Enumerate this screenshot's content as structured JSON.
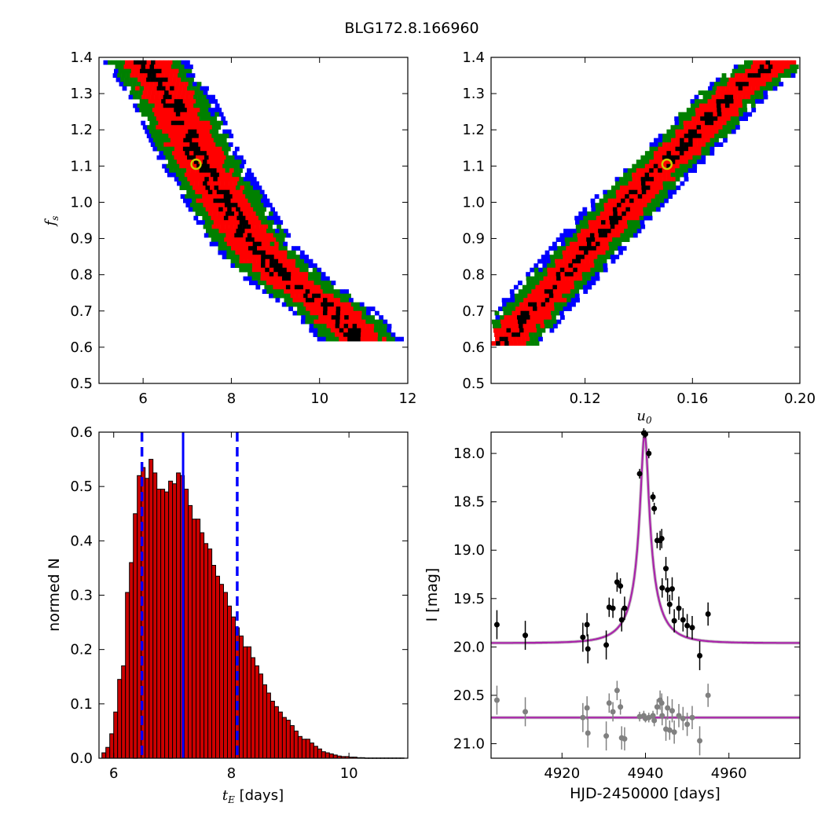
{
  "title": "BLG172.8.166960",
  "chart_data": [
    {
      "type": "heatmap",
      "panel": "top-left",
      "xlabel": "",
      "ylabel": "f_s",
      "xlim": [
        5,
        12
      ],
      "ylim": [
        0.5,
        1.4
      ],
      "xticks": [
        "6",
        "8",
        "10",
        "12"
      ],
      "yticks": [
        "0.5",
        "0.6",
        "0.7",
        "0.8",
        "0.9",
        "1.0",
        "1.1",
        "1.2",
        "1.3",
        "1.4"
      ],
      "contour_levels": [
        {
          "level": "3-sigma",
          "color": "#0000ff"
        },
        {
          "level": "2-sigma",
          "color": "#008000"
        },
        {
          "level": "1-sigma",
          "color": "#ff0000"
        },
        {
          "level": "peak",
          "color": "#000000"
        }
      ],
      "ridge": [
        [
          6.0,
          1.38
        ],
        [
          6.6,
          1.28
        ],
        [
          7.2,
          1.12
        ],
        [
          7.8,
          1.0
        ],
        [
          8.4,
          0.88
        ],
        [
          9.2,
          0.78
        ],
        [
          10.2,
          0.7
        ],
        [
          10.9,
          0.61
        ]
      ],
      "best_fit": {
        "x": 7.2,
        "y": 1.105,
        "color": "#cccc00"
      }
    },
    {
      "type": "heatmap",
      "panel": "top-right",
      "xlabel": "u_0",
      "ylabel": "",
      "xlim": [
        0.085,
        0.2
      ],
      "ylim": [
        0.5,
        1.4
      ],
      "xticks": [
        "0.12",
        "0.16",
        "0.20"
      ],
      "yticks": [
        "0.5",
        "0.6",
        "0.7",
        "0.8",
        "0.9",
        "1.0",
        "1.1",
        "1.2",
        "1.3",
        "1.4"
      ],
      "ridge": [
        [
          0.089,
          0.6
        ],
        [
          0.1,
          0.7
        ],
        [
          0.115,
          0.82
        ],
        [
          0.13,
          0.95
        ],
        [
          0.145,
          1.07
        ],
        [
          0.16,
          1.18
        ],
        [
          0.175,
          1.3
        ],
        [
          0.19,
          1.38
        ]
      ],
      "best_fit": {
        "x": 0.1505,
        "y": 1.105,
        "color": "#cccc00"
      }
    },
    {
      "type": "bar",
      "panel": "bottom-left",
      "xlabel": "t_E [days]",
      "ylabel": "normed N",
      "xlim": [
        5.75,
        11
      ],
      "ylim": [
        0,
        0.6
      ],
      "xticks": [
        "6",
        "8",
        "10"
      ],
      "yticks": [
        "0.0",
        "0.1",
        "0.2",
        "0.3",
        "0.4",
        "0.5",
        "0.6"
      ],
      "bin_start": 5.8,
      "bin_width": 0.0667,
      "values": [
        0.01,
        0.02,
        0.045,
        0.085,
        0.145,
        0.17,
        0.305,
        0.36,
        0.45,
        0.52,
        0.535,
        0.515,
        0.55,
        0.525,
        0.495,
        0.495,
        0.49,
        0.51,
        0.505,
        0.525,
        0.52,
        0.495,
        0.465,
        0.44,
        0.44,
        0.415,
        0.395,
        0.385,
        0.355,
        0.335,
        0.32,
        0.305,
        0.28,
        0.26,
        0.24,
        0.225,
        0.205,
        0.205,
        0.185,
        0.17,
        0.155,
        0.135,
        0.12,
        0.105,
        0.095,
        0.085,
        0.075,
        0.07,
        0.06,
        0.05,
        0.04,
        0.035,
        0.035,
        0.028,
        0.022,
        0.017,
        0.012,
        0.01,
        0.008,
        0.006,
        0.004,
        0.003,
        0.003,
        0.002,
        0.002,
        0.001,
        0.001,
        0.0005,
        0.0005,
        0.0005,
        0.0005,
        0.0005,
        0.0005,
        0.0005,
        0.0005,
        0.0005,
        0.0005,
        0.0005
      ],
      "bar_color": "#cc0000",
      "median": 7.18,
      "interval": [
        6.48,
        8.1
      ],
      "line_color": "#0000ff"
    },
    {
      "type": "scatter",
      "panel": "bottom-right",
      "xlabel": "HJD-2450000 [days]",
      "ylabel": "I [mag]",
      "xlim": [
        4903,
        4977
      ],
      "ylim": [
        21.15,
        17.78
      ],
      "xticks": [
        "4920",
        "4940",
        "4960"
      ],
      "yticks": [
        "18.0",
        "18.5",
        "19.0",
        "19.5",
        "20.0",
        "20.5",
        "21.0"
      ],
      "model": {
        "baseline": 19.96,
        "peak_mag": 17.8,
        "t0": 4939.8,
        "tE": 7.2,
        "u0": 0.15,
        "color": "#aa22aa"
      },
      "residual_baseline": 20.73,
      "series": [
        {
          "name": "data",
          "color": "#000000",
          "points": [
            {
              "x": 4904.4,
              "y": 19.77,
              "e": 0.15
            },
            {
              "x": 4911.2,
              "y": 19.88,
              "e": 0.15
            },
            {
              "x": 4925.0,
              "y": 19.9,
              "e": 0.15
            },
            {
              "x": 4926.0,
              "y": 19.77,
              "e": 0.12
            },
            {
              "x": 4926.2,
              "y": 20.02,
              "e": 0.15
            },
            {
              "x": 4930.6,
              "y": 19.98,
              "e": 0.15
            },
            {
              "x": 4931.3,
              "y": 19.59,
              "e": 0.1
            },
            {
              "x": 4932.2,
              "y": 19.6,
              "e": 0.1
            },
            {
              "x": 4933.2,
              "y": 19.33,
              "e": 0.1
            },
            {
              "x": 4934.0,
              "y": 19.37,
              "e": 0.08
            },
            {
              "x": 4934.3,
              "y": 19.72,
              "e": 0.12
            },
            {
              "x": 4935.0,
              "y": 19.6,
              "e": 0.12
            },
            {
              "x": 4938.6,
              "y": 18.21,
              "e": 0.05
            },
            {
              "x": 4939.6,
              "y": 17.79,
              "e": 0.05
            },
            {
              "x": 4940.0,
              "y": 17.8,
              "e": 0.04
            },
            {
              "x": 4940.8,
              "y": 18.0,
              "e": 0.05
            },
            {
              "x": 4941.8,
              "y": 18.45,
              "e": 0.05
            },
            {
              "x": 4942.1,
              "y": 18.57,
              "e": 0.06
            },
            {
              "x": 4942.8,
              "y": 18.9,
              "e": 0.08
            },
            {
              "x": 4943.5,
              "y": 18.9,
              "e": 0.1
            },
            {
              "x": 4943.9,
              "y": 18.88,
              "e": 0.1
            },
            {
              "x": 4944.0,
              "y": 19.39,
              "e": 0.1
            },
            {
              "x": 4944.9,
              "y": 19.19,
              "e": 0.12
            },
            {
              "x": 4945.3,
              "y": 19.41,
              "e": 0.12
            },
            {
              "x": 4945.8,
              "y": 19.56,
              "e": 0.1
            },
            {
              "x": 4946.4,
              "y": 19.4,
              "e": 0.12
            },
            {
              "x": 4946.9,
              "y": 19.73,
              "e": 0.12
            },
            {
              "x": 4948.0,
              "y": 19.6,
              "e": 0.12
            },
            {
              "x": 4949.0,
              "y": 19.72,
              "e": 0.12
            },
            {
              "x": 4950.0,
              "y": 19.78,
              "e": 0.12
            },
            {
              "x": 4951.2,
              "y": 19.8,
              "e": 0.12
            },
            {
              "x": 4953.0,
              "y": 20.09,
              "e": 0.15
            },
            {
              "x": 4955.0,
              "y": 19.66,
              "e": 0.12
            }
          ]
        },
        {
          "name": "residuals",
          "color": "#808080",
          "points": [
            {
              "x": 4904.4,
              "y": 20.55,
              "e": 0.15
            },
            {
              "x": 4911.2,
              "y": 20.67,
              "e": 0.15
            },
            {
              "x": 4925.0,
              "y": 20.73,
              "e": 0.15
            },
            {
              "x": 4926.0,
              "y": 20.63,
              "e": 0.12
            },
            {
              "x": 4926.2,
              "y": 20.89,
              "e": 0.15
            },
            {
              "x": 4930.6,
              "y": 20.92,
              "e": 0.15
            },
            {
              "x": 4931.3,
              "y": 20.58,
              "e": 0.1
            },
            {
              "x": 4932.2,
              "y": 20.67,
              "e": 0.1
            },
            {
              "x": 4933.2,
              "y": 20.45,
              "e": 0.1
            },
            {
              "x": 4934.0,
              "y": 20.62,
              "e": 0.08
            },
            {
              "x": 4934.3,
              "y": 20.94,
              "e": 0.12
            },
            {
              "x": 4935.0,
              "y": 20.95,
              "e": 0.12
            },
            {
              "x": 4938.6,
              "y": 20.72,
              "e": 0.05
            },
            {
              "x": 4939.6,
              "y": 20.71,
              "e": 0.05
            },
            {
              "x": 4940.0,
              "y": 20.74,
              "e": 0.04
            },
            {
              "x": 4940.8,
              "y": 20.73,
              "e": 0.05
            },
            {
              "x": 4941.8,
              "y": 20.71,
              "e": 0.05
            },
            {
              "x": 4942.1,
              "y": 20.76,
              "e": 0.06
            },
            {
              "x": 4942.8,
              "y": 20.62,
              "e": 0.08
            },
            {
              "x": 4943.5,
              "y": 20.55,
              "e": 0.1
            },
            {
              "x": 4943.9,
              "y": 20.58,
              "e": 0.1
            },
            {
              "x": 4944.0,
              "y": 20.71,
              "e": 0.1
            },
            {
              "x": 4944.9,
              "y": 20.85,
              "e": 0.12
            },
            {
              "x": 4945.3,
              "y": 20.63,
              "e": 0.12
            },
            {
              "x": 4945.8,
              "y": 20.86,
              "e": 0.1
            },
            {
              "x": 4946.4,
              "y": 20.66,
              "e": 0.12
            },
            {
              "x": 4946.9,
              "y": 20.88,
              "e": 0.12
            },
            {
              "x": 4948.0,
              "y": 20.71,
              "e": 0.12
            },
            {
              "x": 4949.0,
              "y": 20.74,
              "e": 0.12
            },
            {
              "x": 4950.0,
              "y": 20.8,
              "e": 0.12
            },
            {
              "x": 4951.2,
              "y": 20.73,
              "e": 0.12
            },
            {
              "x": 4953.0,
              "y": 20.97,
              "e": 0.15
            },
            {
              "x": 4955.0,
              "y": 20.5,
              "e": 0.12
            }
          ]
        }
      ]
    }
  ]
}
